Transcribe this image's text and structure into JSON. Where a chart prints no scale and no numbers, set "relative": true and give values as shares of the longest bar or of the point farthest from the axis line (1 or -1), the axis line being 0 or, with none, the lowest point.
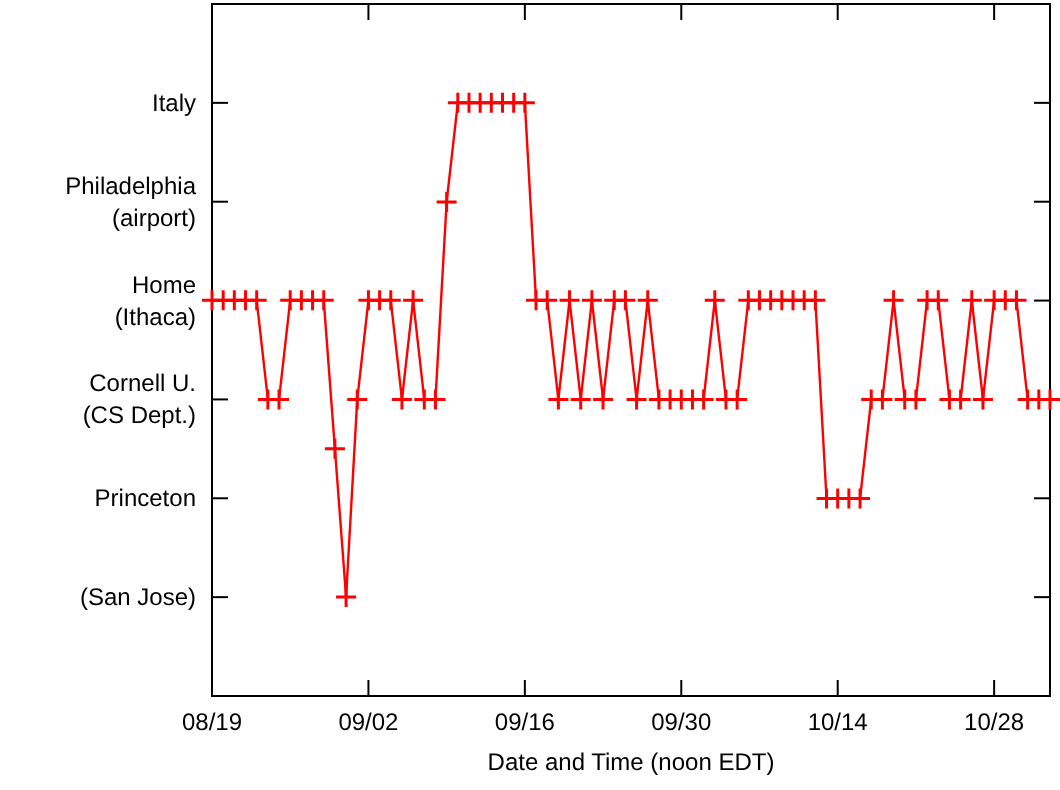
{
  "chart_data": {
    "type": "line",
    "xlabel": "Date and Time (noon EDT)",
    "marker": "cross",
    "line_style": "solid",
    "relative": true,
    "x": [
      "--08-19",
      "--08-20",
      "--08-21",
      "--08-22",
      "--08-23",
      "--08-24",
      "--08-25",
      "--08-26",
      "--08-27",
      "--08-28",
      "--08-29",
      "--08-30",
      "--08-31",
      "--09-01",
      "--09-02",
      "--09-03",
      "--09-04",
      "--09-05",
      "--09-06",
      "--09-07",
      "--09-08",
      "--09-09",
      "--09-10",
      "--09-11",
      "--09-12",
      "--09-13",
      "--09-14",
      "--09-15",
      "--09-16",
      "--09-17",
      "--09-18",
      "--09-19",
      "--09-20",
      "--09-21",
      "--09-22",
      "--09-23",
      "--09-24",
      "--09-25",
      "--09-26",
      "--09-27",
      "--09-28",
      "--09-29",
      "--09-30",
      "--10-01",
      "--10-02",
      "--10-03",
      "--10-04",
      "--10-05",
      "--10-06",
      "--10-07",
      "--10-08",
      "--10-09",
      "--10-10",
      "--10-11",
      "--10-12",
      "--10-13",
      "--10-14",
      "--10-15",
      "--10-16",
      "--10-17",
      "--10-18",
      "--10-19",
      "--10-20",
      "--10-21",
      "--10-22",
      "--10-23",
      "--10-24",
      "--10-25",
      "--10-26",
      "--10-27",
      "--10-28",
      "--10-29",
      "--10-30",
      "--10-31",
      "--11-01",
      "--11-02"
    ],
    "series": [
      {
        "color": "#ff0000",
        "values": [
          0.667,
          0.667,
          0.667,
          0.667,
          0.667,
          0.5,
          0.5,
          0.667,
          0.667,
          0.667,
          0.667,
          0.417,
          0.167,
          0.5,
          0.667,
          0.667,
          0.667,
          0.5,
          0.667,
          0.5,
          0.5,
          0.833,
          1,
          1,
          1,
          1,
          1,
          1,
          1,
          0.667,
          0.667,
          0.5,
          0.667,
          0.5,
          0.667,
          0.5,
          0.667,
          0.667,
          0.5,
          0.667,
          0.5,
          0.5,
          0.5,
          0.5,
          0.5,
          0.667,
          0.5,
          0.5,
          0.667,
          0.667,
          0.667,
          0.667,
          0.667,
          0.667,
          0.667,
          0.333,
          0.333,
          0.333,
          0.333,
          0.5,
          0.5,
          0.667,
          0.5,
          0.5,
          0.667,
          0.667,
          0.5,
          0.5,
          0.667,
          0.5,
          0.667,
          0.667,
          0.667,
          0.5,
          0.5,
          0.5
        ]
      }
    ],
    "xlim": [
      "--08-19",
      "--11-02"
    ],
    "xticks": [
      {
        "value": "--08-19",
        "label": "08/19"
      },
      {
        "value": "--09-02",
        "label": "09/02"
      },
      {
        "value": "--09-16",
        "label": "09/16"
      },
      {
        "value": "--09-30",
        "label": "09/30"
      },
      {
        "value": "--10-14",
        "label": "10/14"
      },
      {
        "value": "--10-28",
        "label": "10/28"
      }
    ],
    "annotations": [
      "(San Jose)",
      "Princeton",
      "Cornell U.\n(CS Dept.)",
      "Home\n(Ithaca)",
      "Philadelphia\n(airport)",
      "Italy"
    ]
  }
}
